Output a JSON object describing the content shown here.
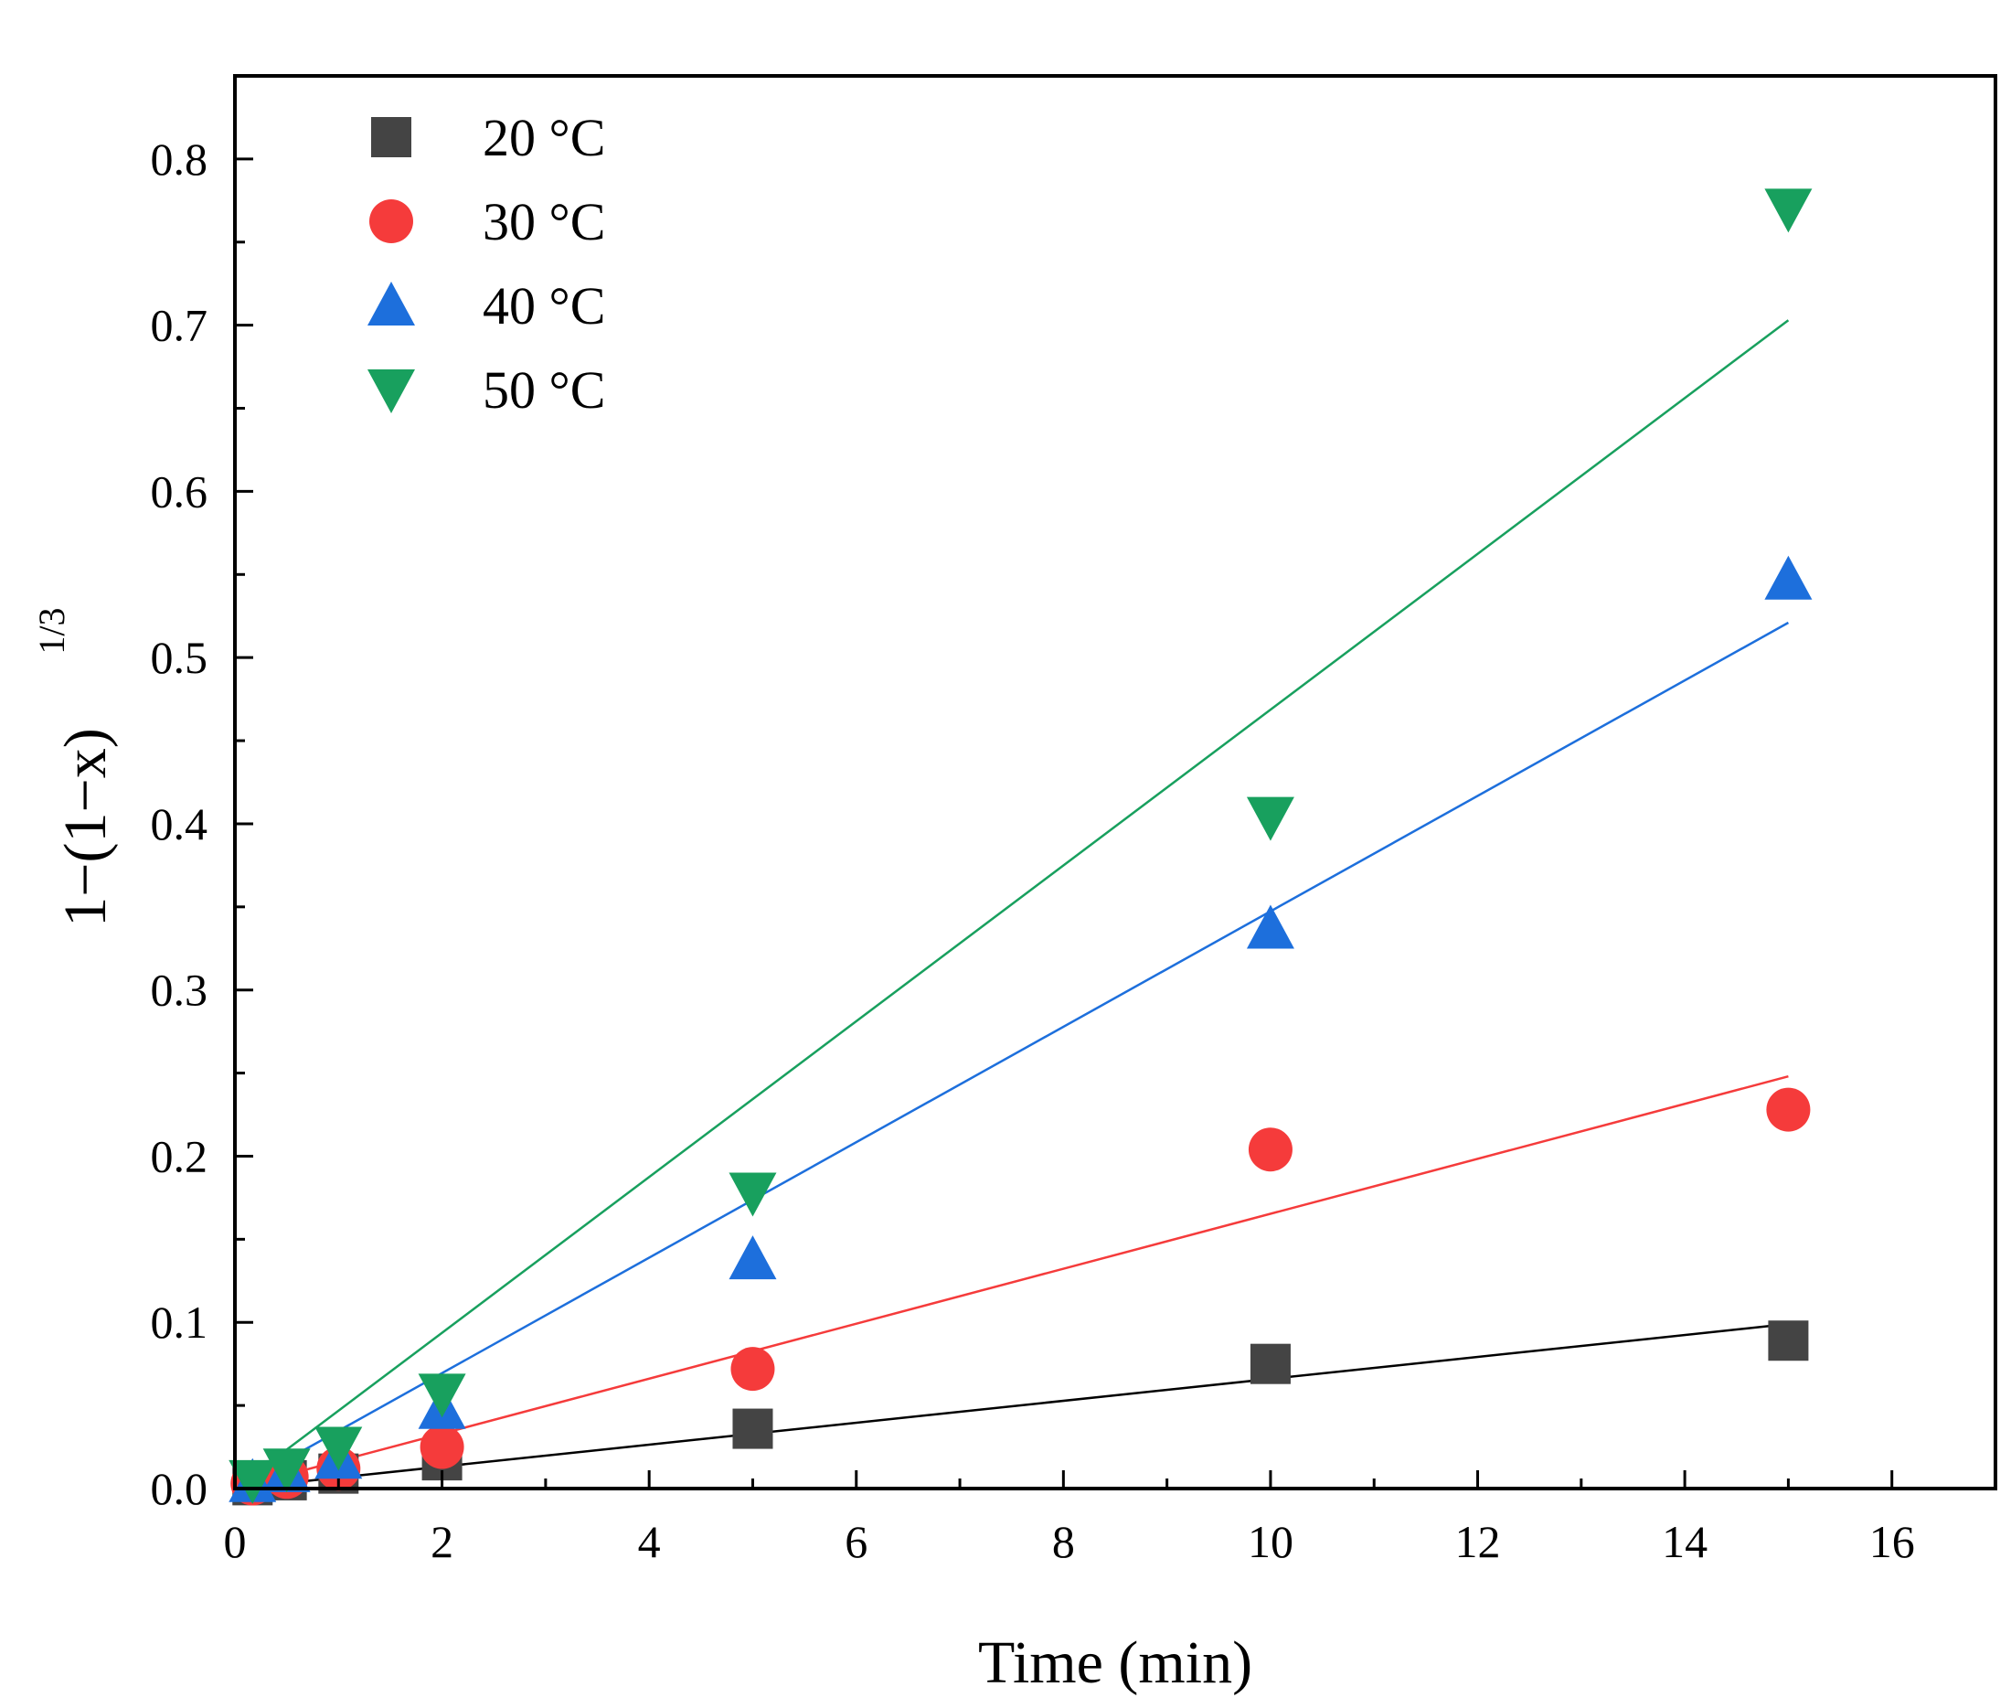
{
  "chart_data": {
    "type": "scatter",
    "xlabel": "Time (min)",
    "ylabel_main": "1−(1−x)",
    "ylabel_sup": "1/3",
    "xlim": [
      0,
      17
    ],
    "ylim": [
      0,
      0.85
    ],
    "xticks": [
      0,
      2,
      4,
      6,
      8,
      10,
      12,
      14,
      16
    ],
    "xtick_labels": [
      "0",
      "2",
      "4",
      "6",
      "8",
      "10",
      "12",
      "14",
      "16"
    ],
    "yticks": [
      0.0,
      0.1,
      0.2,
      0.3,
      0.4,
      0.5,
      0.6,
      0.7,
      0.8
    ],
    "ytick_labels": [
      "0.0",
      "0.1",
      "0.2",
      "0.3",
      "0.4",
      "0.5",
      "0.6",
      "0.7",
      "0.8"
    ],
    "legend_position": "top-left",
    "series": [
      {
        "name": "20 °C",
        "marker": "square",
        "color": "#444444",
        "line_color": "#000000",
        "x": [
          0.17,
          0.5,
          1,
          2,
          5,
          10,
          15
        ],
        "y": [
          0.002,
          0.005,
          0.009,
          0.017,
          0.036,
          0.075,
          0.089
        ],
        "fit": {
          "x": [
            0,
            15
          ],
          "y": [
            0,
            0.099
          ]
        }
      },
      {
        "name": "30 °C",
        "marker": "circle",
        "color": "#f53b3b",
        "line_color": "#f53b3b",
        "x": [
          0.17,
          0.5,
          1,
          2,
          5,
          10,
          15
        ],
        "y": [
          0.003,
          0.007,
          0.012,
          0.025,
          0.072,
          0.204,
          0.228
        ],
        "fit": {
          "x": [
            0,
            15
          ],
          "y": [
            0,
            0.248
          ]
        }
      },
      {
        "name": "40 °C",
        "marker": "triangle-up",
        "color": "#1d6fdc",
        "line_color": "#1d6fdc",
        "x": [
          0.17,
          0.5,
          1,
          2,
          5,
          10,
          15
        ],
        "y": [
          0.004,
          0.01,
          0.018,
          0.048,
          0.138,
          0.337,
          0.547
        ],
        "fit": {
          "x": [
            0,
            15
          ],
          "y": [
            0,
            0.521
          ]
        }
      },
      {
        "name": "50 °C",
        "marker": "triangle-down",
        "color": "#18a05e",
        "line_color": "#18a05e",
        "x": [
          0.17,
          0.5,
          1,
          2,
          5,
          10,
          15
        ],
        "y": [
          0.005,
          0.012,
          0.025,
          0.057,
          0.178,
          0.404,
          0.77
        ],
        "fit": {
          "x": [
            0,
            15
          ],
          "y": [
            0,
            0.703
          ]
        }
      }
    ]
  }
}
